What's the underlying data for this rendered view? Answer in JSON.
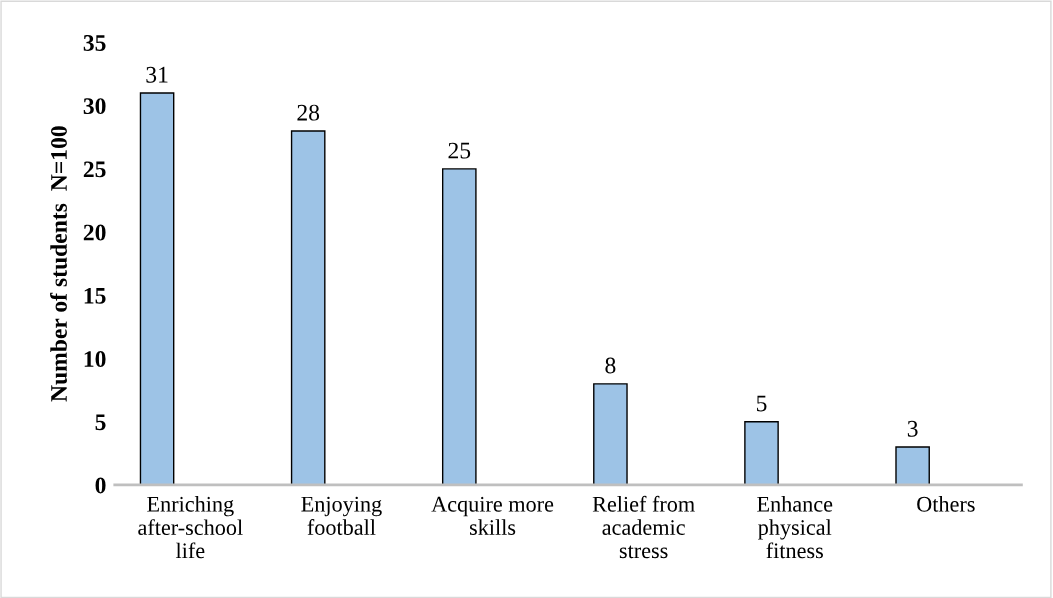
{
  "chart_data": {
    "type": "bar",
    "ylabel": "Number of students  N=100",
    "categories": [
      "Enriching\nafter-school\nlife",
      "Enjoying\nfootball",
      "Acquire more\nskills",
      "Relief from\nacademic\nstress",
      "Enhance\nphysical\nfitness",
      "Others"
    ],
    "values": [
      31,
      28,
      25,
      8,
      5,
      3
    ],
    "color": "#9dc3e6",
    "ylim": [
      0,
      35
    ],
    "yticks": [
      0,
      5,
      10,
      15,
      20,
      25,
      30,
      35
    ],
    "grid": false,
    "data_labels": true
  }
}
